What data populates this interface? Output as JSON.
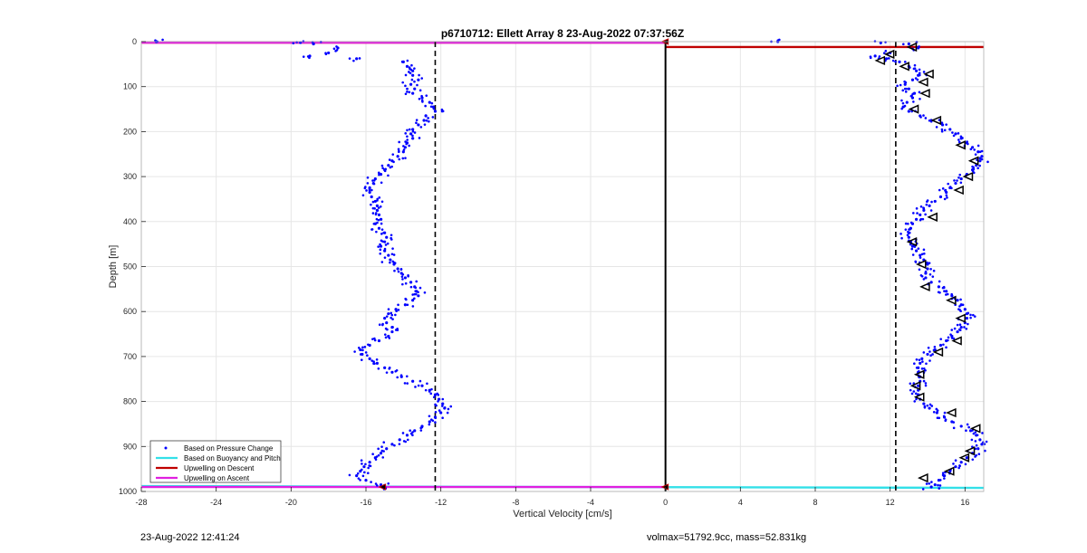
{
  "chart_data": {
    "type": "scatter",
    "title": "p6710712: Ellett Array 8 23-Aug-2022 07:37:56Z",
    "xlabel": "Vertical Velocity [cm/s]",
    "ylabel": "Depth [m]",
    "xlim": [
      -28,
      17
    ],
    "ylim": [
      0,
      1000
    ],
    "y_reversed": true,
    "grid": true,
    "x_ticks": [
      -28,
      -24,
      -20,
      -16,
      -12,
      -8,
      -4,
      0,
      4,
      8,
      12,
      16
    ],
    "y_ticks": [
      0,
      100,
      200,
      300,
      400,
      500,
      600,
      700,
      800,
      900,
      1000
    ],
    "vlines": [
      {
        "x": -12.3,
        "style": "dashed",
        "color": "#000000"
      },
      {
        "x": 12.3,
        "style": "dashed",
        "color": "#000000"
      },
      {
        "x": 0,
        "style": "solid",
        "color": "#000000"
      }
    ],
    "legend": {
      "placement": "bottom-left",
      "entries": [
        {
          "label": "Based on Pressure Change",
          "color": "#0000ff",
          "marker": "dot"
        },
        {
          "label": "Based on Buoyancy and Pitch",
          "color": "#33e0e8",
          "marker": "line"
        },
        {
          "label": "Upwelling on Descent",
          "color": "#c00000",
          "marker": "line"
        },
        {
          "label": "Upwelling on Ascent",
          "color": "#e020e0",
          "marker": "line"
        }
      ]
    },
    "series": [
      {
        "name": "Based on Pressure Change",
        "color": "#0000ff",
        "marker": "dot",
        "depth": [
          0,
          2,
          5,
          14,
          25,
          32,
          38,
          45,
          55,
          65,
          75,
          85,
          95,
          105,
          115,
          125,
          135,
          145,
          155,
          165,
          175,
          185,
          195,
          205,
          215,
          225,
          235,
          245,
          255,
          265,
          275,
          285,
          295,
          305,
          315,
          325,
          335,
          345,
          355,
          365,
          375,
          385,
          395,
          405,
          415,
          425,
          435,
          445,
          455,
          465,
          475,
          485,
          495,
          505,
          515,
          525,
          535,
          545,
          555,
          565,
          575,
          585,
          595,
          605,
          615,
          625,
          635,
          645,
          655,
          665,
          675,
          685,
          695,
          705,
          715,
          725,
          735,
          745,
          755,
          765,
          775,
          785,
          795,
          805,
          815,
          825,
          835,
          845,
          855,
          865,
          875,
          885,
          895,
          905,
          915,
          925,
          935,
          945,
          955,
          965,
          975,
          985,
          990
        ],
        "descent_velocity": [
          -27.2,
          -19.5,
          -18.8,
          -17.5,
          -18.0,
          -19.0,
          -16.5,
          -14.0,
          -13.8,
          -13.5,
          -13.5,
          -13.2,
          -13.6,
          -13.4,
          -13.5,
          -13.0,
          -12.6,
          -12.4,
          -12.3,
          -12.8,
          -12.9,
          -13.2,
          -13.5,
          -13.6,
          -13.5,
          -13.8,
          -13.9,
          -14.0,
          -14.3,
          -14.6,
          -14.8,
          -15.0,
          -15.2,
          -15.5,
          -15.6,
          -15.8,
          -15.8,
          -15.7,
          -15.5,
          -15.4,
          -15.4,
          -15.3,
          -15.2,
          -15.5,
          -15.3,
          -15.0,
          -14.9,
          -15.0,
          -15.2,
          -15.0,
          -14.8,
          -14.7,
          -14.5,
          -14.3,
          -14.1,
          -13.9,
          -13.6,
          -13.4,
          -13.3,
          -13.2,
          -13.5,
          -13.9,
          -14.4,
          -14.8,
          -15.0,
          -14.9,
          -14.6,
          -14.6,
          -14.8,
          -15.3,
          -15.8,
          -16.3,
          -16.2,
          -15.8,
          -15.4,
          -15.0,
          -14.6,
          -14.1,
          -13.5,
          -13.0,
          -12.6,
          -12.3,
          -12.1,
          -11.9,
          -11.8,
          -12.0,
          -12.3,
          -12.6,
          -13.0,
          -13.4,
          -13.8,
          -14.2,
          -14.6,
          -14.9,
          -15.2,
          -15.5,
          -15.8,
          -16.1,
          -16.3,
          -16.5,
          -16.0,
          -15.2,
          -15.0
        ],
        "ascent_velocity": [
          6.0,
          11.5,
          13.0,
          13.5,
          12.0,
          11.2,
          11.8,
          12.5,
          13.0,
          13.4,
          13.5,
          13.2,
          12.8,
          13.0,
          13.3,
          13.2,
          12.9,
          12.7,
          13.0,
          13.6,
          14.2,
          14.8,
          15.2,
          15.5,
          15.8,
          16.1,
          16.4,
          16.7,
          16.9,
          16.8,
          16.6,
          16.4,
          16.1,
          15.8,
          15.5,
          15.2,
          15.0,
          14.7,
          14.4,
          14.1,
          13.8,
          13.6,
          13.4,
          13.2,
          13.1,
          13.0,
          13.0,
          13.1,
          13.2,
          13.4,
          13.6,
          13.8,
          14.0,
          14.0,
          13.9,
          13.9,
          14.2,
          14.6,
          15.0,
          15.3,
          15.6,
          15.8,
          16.0,
          16.1,
          16.1,
          16.0,
          15.8,
          15.6,
          15.3,
          15.0,
          14.7,
          14.4,
          14.0,
          13.7,
          13.6,
          13.5,
          13.5,
          13.6,
          13.6,
          13.5,
          13.5,
          13.5,
          13.6,
          13.8,
          14.1,
          14.5,
          14.9,
          15.3,
          15.8,
          16.3,
          16.6,
          16.8,
          16.9,
          16.7,
          16.4,
          16.1,
          15.8,
          15.5,
          15.2,
          14.9,
          14.6,
          14.4,
          14.2
        ]
      },
      {
        "name": "Based on Buoyancy and Pitch",
        "color": "#33e0e8",
        "marker": "line",
        "depth": [
          988,
          992
        ],
        "velocity": [
          -28,
          17
        ]
      },
      {
        "name": "Upwelling on Descent",
        "color": "#c00000",
        "marker": "line",
        "depth": [
          2,
          2,
          12,
          12
        ],
        "velocity": [
          -28,
          0,
          0,
          17
        ]
      },
      {
        "name": "Upwelling on Ascent",
        "color": "#e020e0",
        "marker": "line",
        "depth": [
          2,
          2,
          990,
          990
        ],
        "velocity": [
          -28,
          0,
          -28,
          0
        ]
      }
    ],
    "triangles": {
      "color": "#000000",
      "depth": [
        12,
        28,
        42,
        55,
        72,
        90,
        115,
        150,
        175,
        230,
        265,
        300,
        330,
        390,
        445,
        495,
        545,
        575,
        615,
        665,
        690,
        740,
        765,
        790,
        825,
        860,
        910,
        925,
        955,
        970
      ],
      "velocity": [
        13.2,
        12.0,
        11.5,
        12.8,
        14.1,
        13.8,
        13.9,
        13.3,
        14.5,
        15.8,
        16.5,
        16.2,
        15.7,
        14.3,
        13.2,
        13.7,
        13.9,
        15.3,
        15.8,
        15.6,
        14.6,
        13.6,
        13.4,
        13.6,
        15.3,
        16.6,
        16.3,
        16.0,
        15.2,
        13.8
      ]
    },
    "markers_at_surface": [
      {
        "x": 0,
        "depth": 0
      },
      {
        "x": -15.1,
        "depth": 990
      },
      {
        "x": 0,
        "depth": 990
      }
    ]
  },
  "footer": {
    "timestamp": "23-Aug-2022 12:41:24",
    "summary": "volmax=51792.9cc, mass=52.831kg"
  }
}
